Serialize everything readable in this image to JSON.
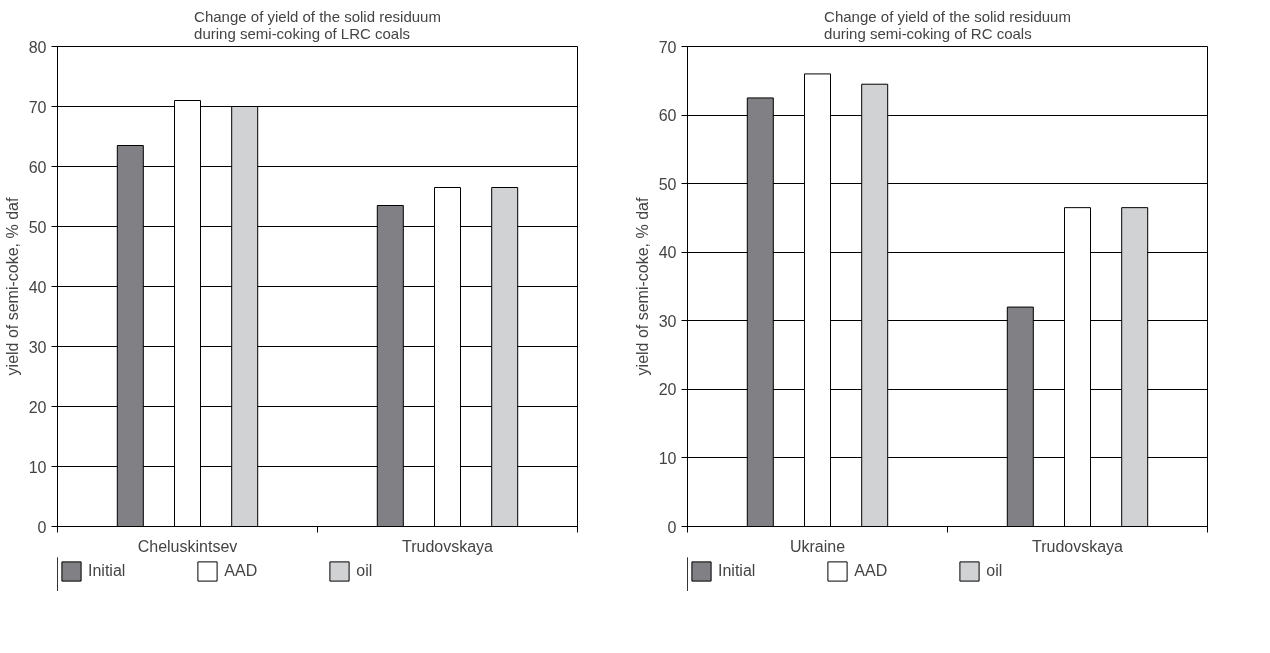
{
  "chart_data": [
    {
      "type": "bar",
      "title": "Change of yield of the solid residuum\nduring semi-coking of LRC coals",
      "ylabel": "yield of semi-coke, % daf",
      "categories": [
        "Cheluskintsev",
        "Trudovskaya"
      ],
      "series": [
        {
          "name": "Initial",
          "color": "#808085",
          "values": [
            63.5,
            53.5
          ]
        },
        {
          "name": "AAD",
          "color": "#ffffff",
          "values": [
            71,
            56.5
          ]
        },
        {
          "name": "oil",
          "color": "#d1d2d4",
          "values": [
            70,
            56.5
          ]
        }
      ],
      "ylim": [
        0,
        80
      ],
      "yticks": [
        0,
        10,
        20,
        30,
        40,
        50,
        60,
        70,
        80
      ],
      "grid": "y",
      "legend": "bottom"
    },
    {
      "type": "bar",
      "title": "Change of yield of the solid residuum\nduring semi-coking of RC coals",
      "ylabel": "yield of semi-coke, % daf",
      "categories": [
        "Ukraine",
        "Trudovskaya"
      ],
      "series": [
        {
          "name": "Initial",
          "color": "#808085",
          "values": [
            62.5,
            32
          ]
        },
        {
          "name": "AAD",
          "color": "#ffffff",
          "values": [
            66,
            46.5
          ]
        },
        {
          "name": "oil",
          "color": "#d1d2d4",
          "values": [
            64.5,
            46.5
          ]
        }
      ],
      "ylim": [
        0,
        70
      ],
      "yticks": [
        0,
        10,
        20,
        30,
        40,
        50,
        60,
        70
      ],
      "grid": "y",
      "legend": "bottom"
    }
  ]
}
